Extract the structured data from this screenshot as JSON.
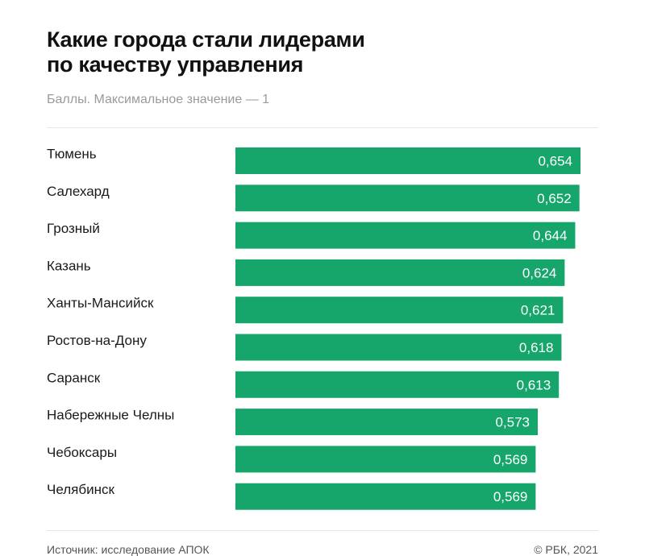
{
  "header": {
    "title_line1": "Какие города стали лидерами",
    "title_line2": "по качеству управления",
    "subtitle": "Баллы. Максимальное значение — 1"
  },
  "footer": {
    "source": "Источник: исследование АПОК",
    "copyright": "© РБК, 2021"
  },
  "colors": {
    "bar": "#16a66b",
    "value_text": "#ffffff",
    "category_text": "#1a1a1a"
  },
  "chart_data": {
    "type": "bar",
    "orientation": "horizontal",
    "title": "Какие города стали лидерами по качеству управления",
    "subtitle": "Баллы. Максимальное значение — 1",
    "xlim": [
      0,
      0.654
    ],
    "grid": false,
    "categories": [
      "Тюмень",
      "Салехард",
      "Грозный",
      "Казань",
      "Ханты-Мансийск",
      "Ростов-на-Дону",
      "Саранск",
      "Набережные Челны",
      "Чебоксары",
      "Челябинск"
    ],
    "values": [
      0.654,
      0.652,
      0.644,
      0.624,
      0.621,
      0.618,
      0.613,
      0.573,
      0.569,
      0.569
    ],
    "value_labels": [
      "0,654",
      "0,652",
      "0,644",
      "0,624",
      "0,621",
      "0,618",
      "0,613",
      "0,573",
      "0,569",
      "0,569"
    ]
  }
}
